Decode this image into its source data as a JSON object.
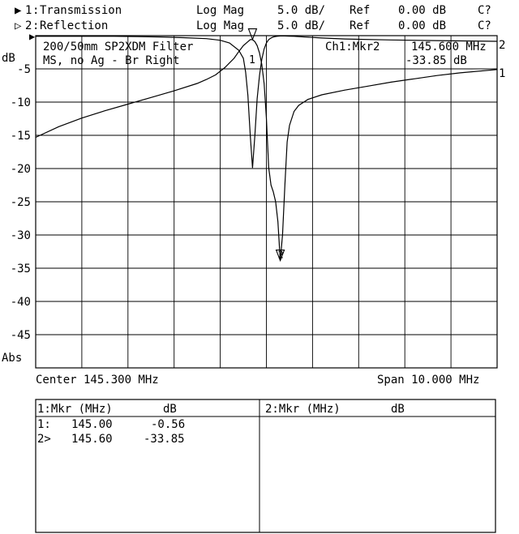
{
  "header": {
    "channels": [
      {
        "marker": "▶",
        "index": "1",
        "name": "Transmission",
        "format": "Log Mag",
        "scale": "5.0 dB/",
        "ref_label": "Ref",
        "ref_value": "0.00 dB",
        "cal": "C?"
      },
      {
        "marker": "▷",
        "index": "2",
        "name": "Reflection",
        "format": "Log Mag",
        "scale": "5.0 dB/",
        "ref_label": "Ref",
        "ref_value": "0.00 dB",
        "cal": "C?"
      }
    ]
  },
  "plot": {
    "title_line1": "200/50mm SP2XDM Filter",
    "title_line2": "MS, no Ag - Br Right",
    "active_marker_label": "Ch1:Mkr2",
    "active_marker_freq": "145.600 MHz",
    "active_marker_value": "-33.85 dB",
    "unit_label": "dB",
    "abs_label": "Abs",
    "ref_indicator": "▶",
    "right_ref_top": "2",
    "right_ref_bottom": "1",
    "marker1_label": "1",
    "footer_left": "Center 145.300 MHz",
    "footer_right": "Span 10.000 MHz"
  },
  "chart_data": {
    "type": "line",
    "x_unit": "MHz",
    "xlim": [
      140.3,
      150.3
    ],
    "ylim": [
      -50,
      0
    ],
    "y_ticks": [
      -5,
      -10,
      -15,
      -20,
      -25,
      -30,
      -35,
      -40,
      -45
    ],
    "grid": true,
    "series": [
      {
        "name": "Transmission",
        "x": [
          140.3,
          140.8,
          141.3,
          141.8,
          142.3,
          142.8,
          143.3,
          143.8,
          144.0,
          144.2,
          144.4,
          144.6,
          144.7,
          144.8,
          144.9,
          144.95,
          145.0,
          145.05,
          145.1,
          145.15,
          145.2,
          145.25,
          145.3,
          145.35,
          145.4,
          145.45,
          145.5,
          145.55,
          145.6,
          145.65,
          145.7,
          145.75,
          145.8,
          145.9,
          146.0,
          146.2,
          146.5,
          147.0,
          147.5,
          148.0,
          148.5,
          149.0,
          149.5,
          150.3
        ],
        "y": [
          -15.3,
          -13.7,
          -12.4,
          -11.3,
          -10.3,
          -9.3,
          -8.3,
          -7.2,
          -6.6,
          -5.9,
          -4.8,
          -3.4,
          -2.4,
          -1.5,
          -0.9,
          -0.6,
          -0.6,
          -0.9,
          -1.5,
          -2.6,
          -4.3,
          -7.2,
          -12.4,
          -19.8,
          -22.5,
          -23.5,
          -25.0,
          -28.0,
          -33.85,
          -30.0,
          -22.5,
          -16.0,
          -13.5,
          -11.4,
          -10.5,
          -9.6,
          -8.9,
          -8.2,
          -7.6,
          -7.0,
          -6.5,
          -6.0,
          -5.6,
          -5.1
        ]
      },
      {
        "name": "Reflection",
        "x": [
          140.3,
          141.0,
          142.0,
          142.5,
          143.0,
          143.5,
          144.0,
          144.3,
          144.5,
          144.7,
          144.8,
          144.85,
          144.9,
          144.95,
          145.0,
          145.05,
          145.1,
          145.15,
          145.2,
          145.25,
          145.3,
          145.35,
          145.4,
          145.45,
          145.5,
          145.55,
          145.6,
          145.65,
          145.7,
          145.75,
          145.8,
          145.9,
          146.0,
          146.5,
          147.0,
          148.0,
          149.0,
          150.3
        ],
        "y": [
          -0.1,
          -0.1,
          -0.1,
          -0.15,
          -0.2,
          -0.3,
          -0.45,
          -0.7,
          -1.1,
          -2.2,
          -3.4,
          -5.5,
          -9.0,
          -15.0,
          -19.9,
          -15.0,
          -9.5,
          -6.0,
          -3.6,
          -2.0,
          -1.1,
          -0.6,
          -0.35,
          -0.2,
          -0.12,
          -0.08,
          -0.05,
          -0.05,
          -0.05,
          -0.06,
          -0.08,
          -0.1,
          -0.15,
          -0.35,
          -0.5,
          -0.65,
          -0.75,
          -0.85
        ]
      }
    ],
    "markers": [
      {
        "channel": "Transmission",
        "index": "1",
        "x": 145.0,
        "y": -0.56
      },
      {
        "channel": "Transmission",
        "index": "2",
        "x": 145.6,
        "y": -33.85
      }
    ]
  },
  "marker_tables": [
    {
      "title": "1:Mkr (MHz)",
      "unit": "dB",
      "rows": [
        {
          "label": "1:",
          "freq": "145.00",
          "value": "-0.56"
        },
        {
          "label": "2>",
          "freq": "145.60",
          "value": "-33.85"
        }
      ]
    },
    {
      "title": "2:Mkr (MHz)",
      "unit": "dB",
      "rows": []
    }
  ]
}
